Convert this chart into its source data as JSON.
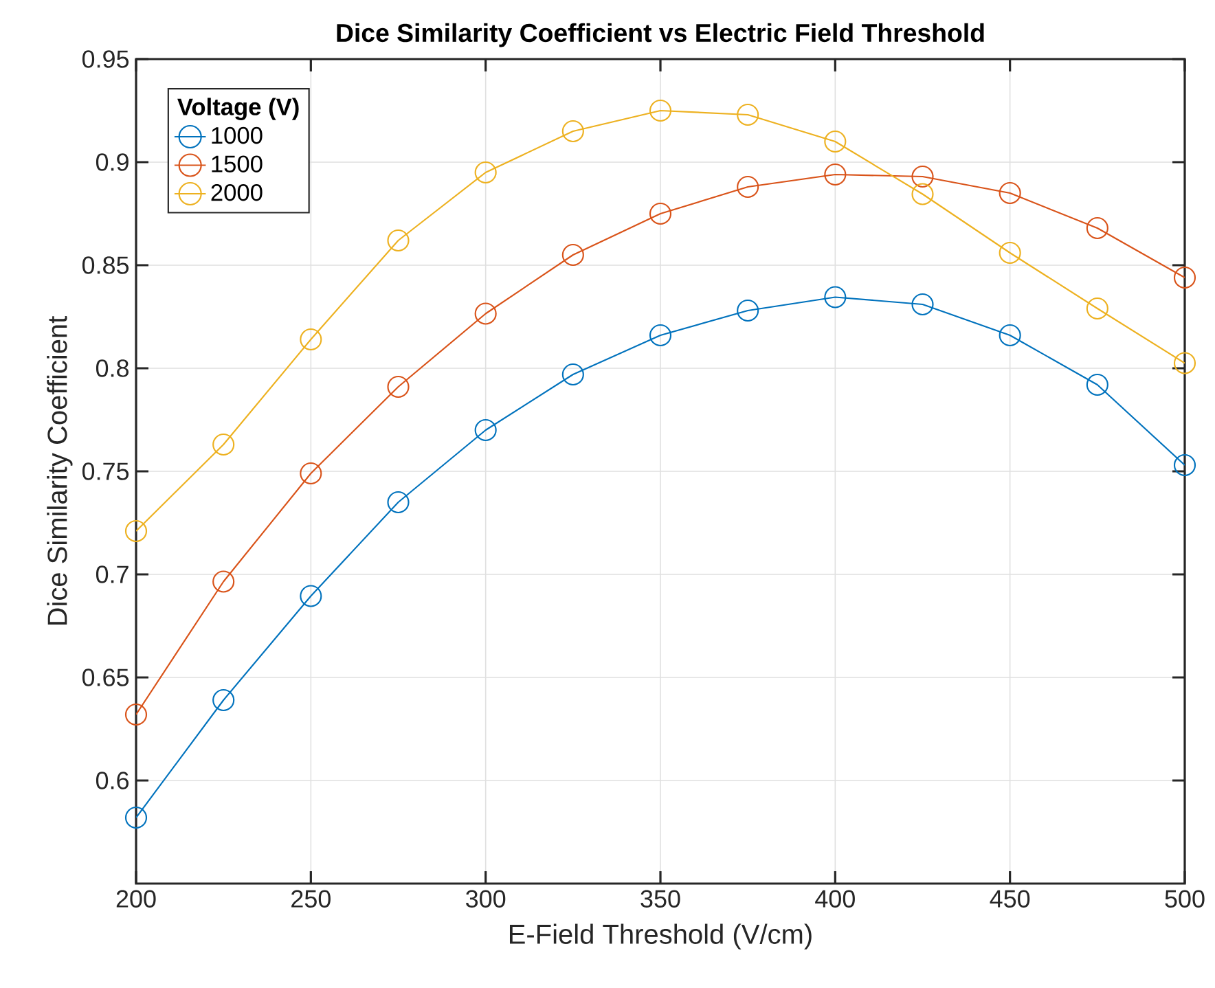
{
  "chart_data": {
    "type": "line",
    "title": "Dice Similarity Coefficient vs Electric Field Threshold",
    "xlabel": "E-Field Threshold (V/cm)",
    "ylabel": "Dice Similarity Coefficient",
    "legend_title": "Voltage (V)",
    "x": [
      200,
      225,
      250,
      275,
      300,
      325,
      350,
      375,
      400,
      425,
      450,
      475,
      500
    ],
    "series": [
      {
        "name": "1000",
        "color": "#0072bd",
        "values": [
          0.582,
          0.639,
          0.6895,
          0.735,
          0.77,
          0.797,
          0.816,
          0.828,
          0.8345,
          0.831,
          0.816,
          0.792,
          0.753
        ]
      },
      {
        "name": "1500",
        "color": "#d95319",
        "values": [
          0.632,
          0.6965,
          0.749,
          0.791,
          0.8265,
          0.855,
          0.875,
          0.888,
          0.894,
          0.893,
          0.885,
          0.868,
          0.844
        ]
      },
      {
        "name": "2000",
        "color": "#edb120",
        "values": [
          0.721,
          0.763,
          0.814,
          0.862,
          0.895,
          0.915,
          0.925,
          0.923,
          0.91,
          0.8845,
          0.856,
          0.829,
          0.8025
        ]
      }
    ],
    "xlim": [
      200,
      500
    ],
    "ylim": [
      0.55,
      0.95
    ],
    "xticks": [
      200,
      250,
      300,
      350,
      400,
      450,
      500
    ],
    "yticks": [
      0.6,
      0.65,
      0.7,
      0.75,
      0.8,
      0.85,
      0.9,
      0.95
    ],
    "grid": true,
    "legend": "top left",
    "marker": "circle",
    "line_style": "solid"
  }
}
